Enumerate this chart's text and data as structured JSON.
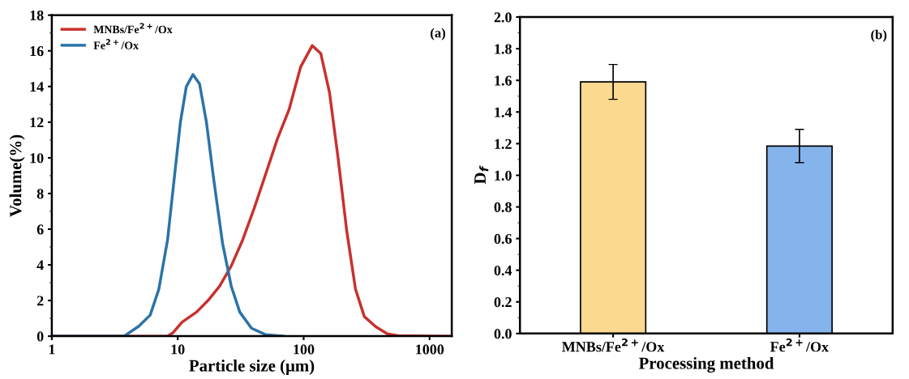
{
  "chart_data": [
    {
      "type": "line",
      "xlabel": "Particle size (μm)",
      "ylabel": "Volume(%)",
      "log": "x",
      "xlim": [
        1,
        1500
      ],
      "xticks": [
        1,
        10,
        100,
        1000
      ],
      "ylim": [
        0,
        18
      ],
      "yticks": [
        0,
        2,
        4,
        6,
        8,
        10,
        12,
        14,
        16,
        18
      ],
      "legend": "top left",
      "annotations": [
        "(a)"
      ],
      "series": [
        {
          "name": "MNBs/Fe$^{2+}$/Ox",
          "color": "#c8312f",
          "x": [
            1,
            8.3,
            9.2,
            10.8,
            14.1,
            17.4,
            21.5,
            26.6,
            32.8,
            40.5,
            50.1,
            61.9,
            76.5,
            94.6,
            116.9,
            136.8,
            160.4,
            188,
            220,
            258,
            303,
            374,
            462,
            571,
            1500
          ],
          "values": [
            0,
            0,
            0.2,
            0.78,
            1.35,
            2.0,
            2.8,
            3.94,
            5.4,
            7.18,
            9.12,
            11.07,
            12.7,
            15.1,
            16.29,
            15.85,
            13.66,
            9.94,
            5.88,
            2.64,
            1.1,
            0.53,
            0.13,
            0.02,
            0
          ]
        },
        {
          "name": "Fe$^{2+}$/Ox",
          "color": "#2a73a8",
          "x": [
            1,
            3.75,
            4.89,
            6.04,
            7.08,
            8.3,
            9.2,
            10.5,
            11.7,
            13.2,
            14.9,
            16.9,
            19.3,
            22.7,
            26.6,
            31.1,
            38.5,
            50,
            68.9
          ],
          "values": [
            0,
            0,
            0.55,
            1.18,
            2.64,
            5.4,
            8.3,
            12.0,
            14.0,
            14.67,
            14.15,
            12.0,
            8.8,
            5.2,
            2.8,
            1.35,
            0.45,
            0.08,
            0
          ]
        }
      ]
    },
    {
      "type": "bar",
      "xlabel": "Processing method",
      "ylabel": "D$_{f}$",
      "categories": [
        "MNBs/Fe$^{2+}$/Ox",
        "Fe$^{2+}$/Ox"
      ],
      "values": [
        1.59,
        1.185
      ],
      "colors": [
        "#fcd990",
        "#85b4ec"
      ],
      "errors": [
        [
          1.48,
          1.7
        ],
        [
          1.08,
          1.29
        ]
      ],
      "ylim": [
        0,
        2.0
      ],
      "yticks": [
        {
          "value": 0,
          "label": "0.0"
        },
        {
          "value": 0.2,
          "label": "0.2"
        },
        {
          "value": 0.4,
          "label": "0.4"
        },
        {
          "value": 0.6,
          "label": "0.6"
        },
        {
          "value": 0.8,
          "label": "0.8"
        },
        {
          "value": 1.0,
          "label": "1.0"
        },
        {
          "value": 1.2,
          "label": "1.2"
        },
        {
          "value": 1.4,
          "label": "1.4"
        },
        {
          "value": 1.6,
          "label": "1.6"
        },
        {
          "value": 1.8,
          "label": "1.8"
        },
        {
          "value": 2.0,
          "label": "2.0"
        }
      ],
      "annotations": [
        "(b)"
      ]
    }
  ]
}
